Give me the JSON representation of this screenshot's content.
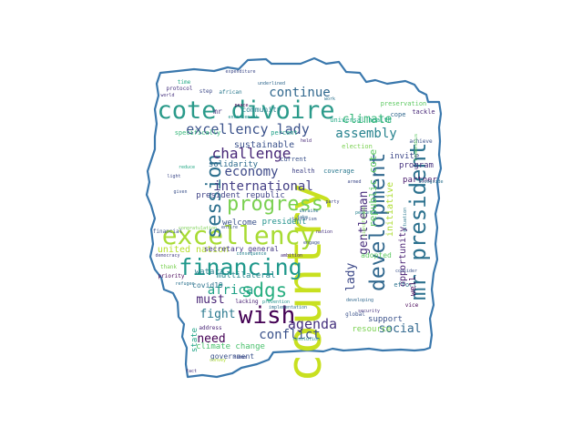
{
  "colors": {
    "outline": "#3a78ad",
    "background": "#ffffff",
    "palette": [
      "#440154",
      "#3b528b",
      "#21918c",
      "#5ec962",
      "#fde725"
    ]
  },
  "words": [
    {
      "text": "country",
      "color": "#c8e020"
    },
    {
      "text": "cote divoire",
      "color": "#2a9a8a"
    },
    {
      "text": "excellency",
      "color": "#a8db34"
    },
    {
      "text": "financing",
      "color": "#1f988b"
    },
    {
      "text": "progress",
      "color": "#7ad151"
    },
    {
      "text": "wish",
      "color": "#440154"
    },
    {
      "text": "mr president",
      "color": "#2c718e"
    },
    {
      "text": "development",
      "color": "#31688e"
    },
    {
      "text": "sdgs",
      "color": "#28ae80"
    },
    {
      "text": "session",
      "color": "#2d708e"
    },
    {
      "text": "excellency lady",
      "color": "#3b528b"
    },
    {
      "text": "challenge",
      "color": "#482878"
    },
    {
      "text": "continue",
      "color": "#31688e"
    },
    {
      "text": "assembly",
      "color": "#26828e"
    },
    {
      "text": "climate",
      "color": "#35b779"
    },
    {
      "text": "economy",
      "color": "#3e4a89"
    },
    {
      "text": "international",
      "color": "#433e85"
    },
    {
      "text": "africa",
      "color": "#1fa187"
    },
    {
      "text": "agenda",
      "color": "#46327e"
    },
    {
      "text": "conflict",
      "color": "#3b528b"
    },
    {
      "text": "must",
      "color": "#482475"
    },
    {
      "text": "fight",
      "color": "#2a788e"
    },
    {
      "text": "need",
      "color": "#440154"
    },
    {
      "text": "social",
      "color": "#31688e"
    },
    {
      "text": "lady",
      "color": "#3e4a89"
    },
    {
      "text": "gentleman",
      "color": "#472d7b"
    },
    {
      "text": "republic cote",
      "color": "#5ec962"
    },
    {
      "text": "initiative",
      "color": "#addc30"
    },
    {
      "text": "opportunity",
      "color": "#482173"
    },
    {
      "text": "united nation",
      "color": "#b5de2b"
    },
    {
      "text": "sustainable",
      "color": "#3b528b"
    },
    {
      "text": "solidarity",
      "color": "#2f6c8e"
    },
    {
      "text": "president republic",
      "color": "#414487"
    },
    {
      "text": "welcome",
      "color": "#3b528b"
    },
    {
      "text": "president",
      "color": "#21918c"
    },
    {
      "text": "secretary general",
      "color": "#443983"
    },
    {
      "text": "watara",
      "color": "#27808e"
    },
    {
      "text": "multilateral",
      "color": "#24868e"
    },
    {
      "text": "covid19",
      "color": "#2c738e"
    },
    {
      "text": "climate change",
      "color": "#4ac16d"
    },
    {
      "text": "government",
      "color": "#3b528b"
    },
    {
      "text": "state",
      "color": "#20a386"
    },
    {
      "text": "program",
      "color": "#46327e"
    },
    {
      "text": "invite",
      "color": "#3e4989"
    },
    {
      "text": "partner",
      "color": "#481a6c"
    },
    {
      "text": "adopted",
      "color": "#5ec962"
    },
    {
      "text": "effort",
      "color": "#2c728e"
    },
    {
      "text": "support",
      "color": "#3b528b"
    },
    {
      "text": "resource",
      "color": "#7ad151"
    },
    {
      "text": "well",
      "color": "#440154"
    },
    {
      "text": "community",
      "color": "#26828e"
    },
    {
      "text": "mr",
      "color": "#46327e"
    },
    {
      "text": "specifically",
      "color": "#35b779"
    },
    {
      "text": "percent",
      "color": "#1fa187"
    },
    {
      "text": "current",
      "color": "#3b528b"
    },
    {
      "text": "health",
      "color": "#414487"
    },
    {
      "text": "coverage",
      "color": "#2a788e"
    },
    {
      "text": "election",
      "color": "#7ad151"
    },
    {
      "text": "universal health",
      "color": "#22a884"
    },
    {
      "text": "preservation",
      "color": "#5ec962"
    },
    {
      "text": "tackle",
      "color": "#482878"
    },
    {
      "text": "cope",
      "color": "#31688e"
    },
    {
      "text": "achieve",
      "color": "#3b528b"
    },
    {
      "text": "time",
      "color": "#22a884"
    },
    {
      "text": "protocol",
      "color": "#46327e"
    },
    {
      "text": "step",
      "color": "#3e4a89"
    },
    {
      "text": "african",
      "color": "#2a788e"
    },
    {
      "text": "peace",
      "color": "#440154"
    },
    {
      "text": "enhancement",
      "color": "#21918c"
    },
    {
      "text": "underlined",
      "color": "#31688e"
    },
    {
      "text": "expenditure",
      "color": "#3e4a89"
    },
    {
      "text": "world",
      "color": "#46327e"
    },
    {
      "text": "work",
      "color": "#2c718e"
    },
    {
      "text": "financial",
      "color": "#3b528b"
    },
    {
      "text": "thank",
      "color": "#7ad151"
    },
    {
      "text": "priority",
      "color": "#440154"
    },
    {
      "text": "democracy",
      "color": "#433e85"
    },
    {
      "text": "refugee",
      "color": "#2c728e"
    },
    {
      "text": "address",
      "color": "#482475"
    },
    {
      "text": "entire",
      "color": "#3b528b"
    },
    {
      "text": "consequence",
      "color": "#26828e"
    },
    {
      "text": "ambition",
      "color": "#482878"
    },
    {
      "text": "engage",
      "color": "#3b528b"
    },
    {
      "text": "lacking",
      "color": "#482173"
    },
    {
      "text": "prevention",
      "color": "#21918c"
    },
    {
      "text": "implementation",
      "color": "#2c718e"
    },
    {
      "text": "terrorism",
      "color": "#3b528b"
    },
    {
      "text": "convey",
      "color": "#addc30"
    },
    {
      "text": "human",
      "color": "#3e4a89"
    },
    {
      "text": "security",
      "color": "#46327e"
    },
    {
      "text": "developing",
      "color": "#31688e"
    },
    {
      "text": "global",
      "color": "#3b528b"
    },
    {
      "text": "vice",
      "color": "#440154"
    },
    {
      "text": "situation",
      "color": "#2a788e"
    },
    {
      "text": "consider",
      "color": "#3b528b"
    },
    {
      "text": "peaceful",
      "color": "#26828e"
    },
    {
      "text": "party",
      "color": "#414487"
    },
    {
      "text": "armed",
      "color": "#3e4a89"
    },
    {
      "text": "ukraine",
      "color": "#2c718e"
    },
    {
      "text": "held",
      "color": "#482878"
    },
    {
      "text": "reduce",
      "color": "#22a884"
    },
    {
      "text": "congratulation",
      "color": "#7ad151"
    },
    {
      "text": "resolution",
      "color": "#21918c"
    },
    {
      "text": "nation",
      "color": "#46327e"
    },
    {
      "text": "given",
      "color": "#3b528b"
    },
    {
      "text": "take",
      "color": "#31688e"
    },
    {
      "text": "alongside",
      "color": "#2c728e"
    },
    {
      "text": "tremendous",
      "color": "#5ec962"
    },
    {
      "text": "significant",
      "color": "#7ad151"
    },
    {
      "text": "light",
      "color": "#3e4a89"
    },
    {
      "text": "fact",
      "color": "#46327e"
    }
  ]
}
